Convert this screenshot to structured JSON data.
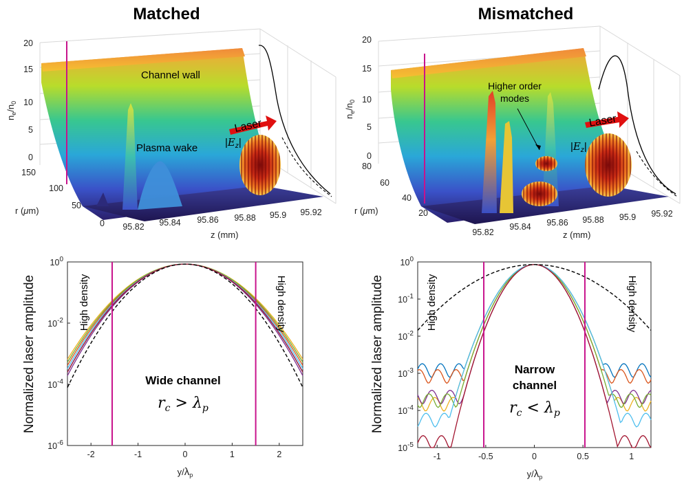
{
  "chart_data": [
    {
      "type": "surface",
      "title": "Matched",
      "zlabel": "n_e/n_0",
      "xlabel": "z (mm)",
      "ylabel": "r (μm)",
      "x_ticks": [
        "95.82",
        "95.84",
        "95.86",
        "95.88",
        "95.9",
        "95.92"
      ],
      "y_ticks": [
        "0",
        "50",
        "100",
        "150"
      ],
      "z_ticks": [
        "0",
        "5",
        "10",
        "15",
        "20"
      ],
      "annotations": [
        "Channel wall",
        "Plasma wake",
        "Laser",
        "|E_z|"
      ],
      "channel_wall_density": 16.5
    },
    {
      "type": "surface",
      "title": "Mismatched",
      "zlabel": "n_e/n_0",
      "xlabel": "z (mm)",
      "ylabel": "r (μm)",
      "x_ticks": [
        "95.82",
        "95.84",
        "95.86",
        "95.88",
        "95.9",
        "95.92"
      ],
      "y_ticks": [
        "20",
        "40",
        "60",
        "80"
      ],
      "z_ticks": [
        "0",
        "5",
        "10",
        "15",
        "20"
      ],
      "annotations": [
        "Higher order modes",
        "Laser",
        "|E_z|"
      ],
      "channel_wall_density": 16.5
    },
    {
      "type": "line",
      "ylabel": "Normalized laser amplitude",
      "xlabel": "y/λp",
      "yscale": "log",
      "xlim": [
        -2.5,
        2.5
      ],
      "ylim": [
        1e-06,
        1
      ],
      "x_ticks": [
        "-2",
        "-1",
        "0",
        "1",
        "2"
      ],
      "y_ticks": [
        "10^-6",
        "10^-4",
        "10^-2",
        "10^0"
      ],
      "annotations": [
        "High density",
        "High density",
        "Wide channel",
        "r_c > λ_p"
      ],
      "channel_edges": [
        -1.55,
        1.5
      ],
      "series": [
        {
          "w": 0.62,
          "floor": 1.5e-06,
          "color": "#0072BD"
        },
        {
          "w": 0.64,
          "floor": 2e-06,
          "color": "#D95319"
        },
        {
          "w": 0.66,
          "floor": 1.2e-06,
          "color": "#EDB120"
        },
        {
          "w": 0.61,
          "floor": 2.5e-06,
          "color": "#7E2F8E"
        },
        {
          "w": 0.65,
          "floor": 1.8e-06,
          "color": "#77AC30"
        },
        {
          "w": 0.63,
          "floor": 1.1e-06,
          "color": "#4DBEEE"
        },
        {
          "w": 0.62,
          "floor": 3e-06,
          "color": "#A2142F"
        },
        {
          "w": 0.58,
          "floor": 0,
          "color": "#000000",
          "dashed": true
        }
      ]
    },
    {
      "type": "line",
      "ylabel": "Normalized laser amplitude",
      "xlabel": "y/λp",
      "yscale": "log",
      "xlim": [
        -1.2,
        1.2
      ],
      "ylim": [
        1e-05,
        1
      ],
      "x_ticks": [
        "-1",
        "-0.5",
        "0",
        "0.5",
        "1"
      ],
      "y_ticks": [
        "10^-5",
        "10^-4",
        "10^-3",
        "10^-2",
        "10^-1",
        "10^0"
      ],
      "annotations": [
        "High density",
        "High density",
        "Narrow",
        "channel",
        "r_c < λ_p"
      ],
      "channel_edges": [
        -0.52,
        0.52
      ],
      "series": [
        {
          "w": 0.2,
          "floor": 0.0013,
          "color": "#0072BD"
        },
        {
          "w": 0.19,
          "floor": 0.0009,
          "color": "#D95319"
        },
        {
          "w": 0.2,
          "floor": 0.00016,
          "color": "#EDB120"
        },
        {
          "w": 0.18,
          "floor": 0.00025,
          "color": "#7E2F8E"
        },
        {
          "w": 0.19,
          "floor": 0.0002,
          "color": "#77AC30"
        },
        {
          "w": 0.2,
          "floor": 6e-05,
          "color": "#4DBEEE"
        },
        {
          "w": 0.18,
          "floor": 1.5e-05,
          "color": "#A2142F"
        },
        {
          "w": 0.42,
          "floor": 0,
          "color": "#000000",
          "dashed": true
        }
      ]
    }
  ],
  "colors": {
    "edge": "#c8128c",
    "laser_arrow": "#e01010"
  }
}
